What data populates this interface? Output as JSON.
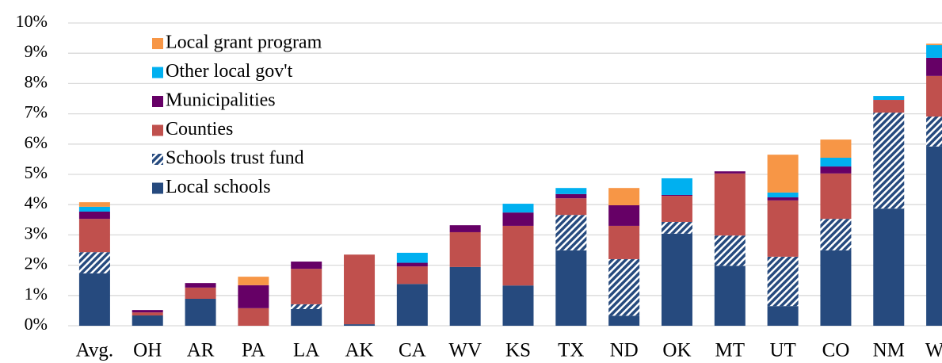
{
  "chart_data": {
    "type": "stacked_bar",
    "categories": [
      "Avg.",
      "OH",
      "AR",
      "PA",
      "LA",
      "AK",
      "CA",
      "WV",
      "KS",
      "TX",
      "ND",
      "OK",
      "MT",
      "UT",
      "CO",
      "NM",
      "WY"
    ],
    "series": [
      {
        "name": "Local schools",
        "color": "#264a7e",
        "values": [
          1.73,
          0.34,
          0.89,
          0,
          0.55,
          0.05,
          1.38,
          1.94,
          1.33,
          2.49,
          0.33,
          3.04,
          1.98,
          0.65,
          2.49,
          3.87,
          5.92
        ]
      },
      {
        "name": "Schools trust fund",
        "color": "#264a7e",
        "hatch": true,
        "values": [
          0.7,
          0,
          0,
          0,
          0.16,
          0,
          0,
          0,
          0,
          1.17,
          1.87,
          0.39,
          1.0,
          1.63,
          1.04,
          3.17,
          0.99
        ]
      },
      {
        "name": "Counties",
        "color": "#c0504d",
        "values": [
          1.1,
          0.1,
          0.37,
          0.58,
          1.17,
          2.3,
          0.58,
          1.15,
          1.97,
          0.55,
          1.1,
          0.86,
          2.05,
          1.86,
          1.5,
          0.42,
          1.34
        ]
      },
      {
        "name": "Municipalities",
        "color": "#660066",
        "values": [
          0.24,
          0.08,
          0.15,
          0.76,
          0.24,
          0,
          0.12,
          0.23,
          0.44,
          0.14,
          0.68,
          0.03,
          0.07,
          0.1,
          0.23,
          0,
          0.6
        ]
      },
      {
        "name": "Other local gov't",
        "color": "#00b0f0",
        "values": [
          0.16,
          0,
          0,
          0,
          0,
          0,
          0.33,
          0,
          0.29,
          0.2,
          0,
          0.55,
          0,
          0.16,
          0.29,
          0.13,
          0.42
        ]
      },
      {
        "name": "Local grant program",
        "color": "#f79646",
        "values": [
          0.15,
          0,
          0,
          0.28,
          0,
          0,
          0,
          0,
          0,
          0,
          0.57,
          0,
          0,
          1.25,
          0.6,
          0,
          0.05
        ]
      }
    ],
    "ylim": [
      0,
      10
    ],
    "yticks": [
      {
        "value": 0,
        "label": "0%"
      },
      {
        "value": 1,
        "label": "1%"
      },
      {
        "value": 2,
        "label": "2%"
      },
      {
        "value": 3,
        "label": "3%"
      },
      {
        "value": 4,
        "label": "4%"
      },
      {
        "value": 5,
        "label": "5%"
      },
      {
        "value": 6,
        "label": "6%"
      },
      {
        "value": 7,
        "label": "7%"
      },
      {
        "value": 8,
        "label": "8%"
      },
      {
        "value": 9,
        "label": "9%"
      },
      {
        "value": 10,
        "label": "10%"
      }
    ],
    "grid": true,
    "legend": "upper left"
  }
}
